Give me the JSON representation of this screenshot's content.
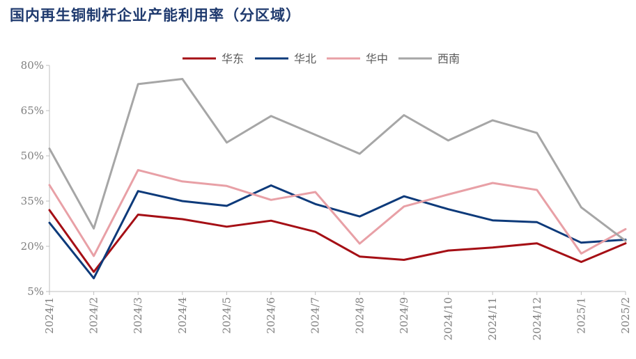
{
  "chart_data": {
    "type": "line",
    "title": "国内再生铜制杆企业产能利用率（分区域）",
    "x": [
      "2024/1",
      "2024/2",
      "2024/3",
      "2024/4",
      "2024/5",
      "2024/6",
      "2024/7",
      "2024/8",
      "2024/9",
      "2024/10",
      "2024/11",
      "2024/12",
      "2025/1",
      "2025/2"
    ],
    "ylim": [
      5,
      80
    ],
    "yticks": [
      5,
      20,
      35,
      50,
      65,
      80
    ],
    "ytick_labels": [
      "5%",
      "20%",
      "35%",
      "50%",
      "65%",
      "80%"
    ],
    "grid": false,
    "legend_position": "top",
    "series": [
      {
        "name": "华东",
        "color": "#a50f15",
        "values": [
          32,
          11.5,
          30.5,
          29,
          26.5,
          28.5,
          24.8,
          16.6,
          15.5,
          18.6,
          19.6,
          21,
          14.8,
          21
        ]
      },
      {
        "name": "华北",
        "color": "#0d3a7a",
        "values": [
          27.8,
          9.4,
          38.3,
          35,
          33.4,
          40.2,
          34,
          29.9,
          36.6,
          32.3,
          28.6,
          28,
          21.2,
          22.2
        ]
      },
      {
        "name": "华中",
        "color": "#e8a0a6",
        "values": [
          40.3,
          16.8,
          45.3,
          41.5,
          40,
          35.4,
          38,
          20.9,
          33.2,
          37.2,
          41,
          38.7,
          17.6,
          25.7
        ]
      },
      {
        "name": "西南",
        "color": "#a6a6a6",
        "values": [
          52.4,
          25.9,
          73.8,
          75.5,
          54.4,
          63.2,
          57,
          50.7,
          63.5,
          55.1,
          61.8,
          57.6,
          32.9,
          21.8
        ]
      }
    ]
  }
}
